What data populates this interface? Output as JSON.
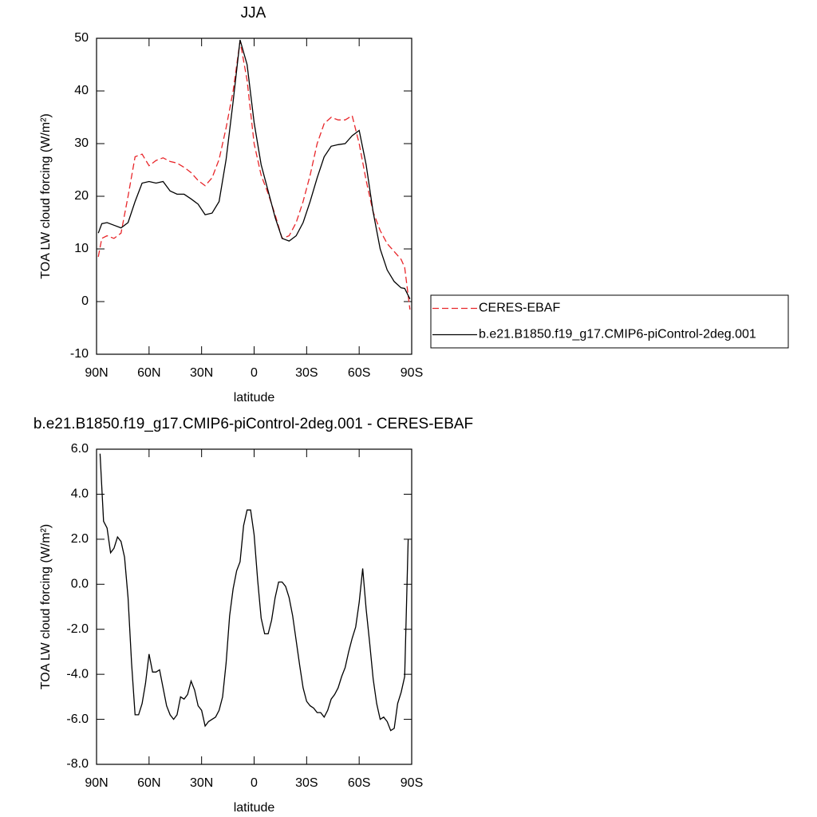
{
  "chart_data": [
    {
      "type": "line",
      "title": "JJA",
      "xlabel": "latitude",
      "ylabel": "TOA LW cloud forcing (W/m²)",
      "xlim": [
        90,
        -90
      ],
      "xticks": [
        {
          "value": 90,
          "label": "90N"
        },
        {
          "value": 60,
          "label": "60N"
        },
        {
          "value": 30,
          "label": "30N"
        },
        0,
        {
          "value": -30,
          "label": "30S"
        },
        {
          "value": -60,
          "label": "60S"
        },
        {
          "value": -90,
          "label": "90S"
        }
      ],
      "ylim": [
        -10,
        50
      ],
      "yticks": [
        -10,
        0,
        10,
        20,
        30,
        40,
        50
      ],
      "legend": "right",
      "x": [
        89,
        87,
        84,
        80,
        76,
        72,
        68,
        64,
        60,
        56,
        52,
        48,
        44,
        40,
        36,
        32,
        28,
        24,
        20,
        16,
        12,
        8,
        4,
        0,
        -4,
        -8,
        -12,
        -16,
        -20,
        -24,
        -28,
        -32,
        -36,
        -40,
        -44,
        -48,
        -52,
        -56,
        -60,
        -64,
        -68,
        -72,
        -76,
        -80,
        -84,
        -86,
        -89
      ],
      "series": [
        {
          "name": "CERES-EBAF",
          "color": "#e8262a",
          "dashed": true,
          "values": [
            8.5,
            12,
            12.5,
            12,
            13,
            20,
            27.5,
            28,
            25.8,
            26.8,
            27.3,
            26.6,
            26.3,
            25.5,
            24.5,
            23,
            22,
            23.5,
            27,
            33,
            40,
            49.5,
            42,
            30,
            24,
            20.5,
            16.5,
            12,
            12.5,
            15,
            19,
            24,
            30,
            33.8,
            35,
            34.5,
            34.5,
            35.3,
            30,
            23,
            17,
            13.5,
            11,
            9.5,
            8,
            6.5,
            -1.5
          ]
        },
        {
          "name": "b.e21.B1850.f19_g17.CMIP6-piControl-2deg.001",
          "color": "#000000",
          "dashed": false,
          "values": [
            13,
            14.8,
            15,
            14.5,
            14,
            15,
            19,
            22.5,
            22.8,
            22.5,
            22.8,
            21,
            20.4,
            20.4,
            19.5,
            18.5,
            16.5,
            16.8,
            19,
            27,
            38,
            49.7,
            45,
            34,
            26,
            21,
            16,
            12,
            11.5,
            12.5,
            15,
            19,
            23.5,
            27.5,
            29.5,
            29.8,
            30,
            31.5,
            32.5,
            26,
            17,
            10,
            6,
            3.8,
            2.6,
            2.5,
            0.5
          ]
        }
      ]
    },
    {
      "type": "line",
      "title": "b.e21.B1850.f19_g17.CMIP6-piControl-2deg.001 - CERES-EBAF",
      "xlabel": "latitude",
      "ylabel": "TOA LW cloud forcing (W/m²)",
      "xlim": [
        90,
        -90
      ],
      "xticks": [
        {
          "value": 90,
          "label": "90N"
        },
        {
          "value": 60,
          "label": "60N"
        },
        {
          "value": 30,
          "label": "30N"
        },
        0,
        {
          "value": -30,
          "label": "30S"
        },
        {
          "value": -60,
          "label": "60S"
        },
        {
          "value": -90,
          "label": "90S"
        }
      ],
      "ylim": [
        -8,
        6
      ],
      "yticks": [
        {
          "value": -8,
          "label": "-8.0"
        },
        {
          "value": -6,
          "label": "-6.0"
        },
        {
          "value": -4,
          "label": "-4.0"
        },
        {
          "value": -2,
          "label": "-2.0"
        },
        {
          "value": 0,
          "label": "0.0"
        },
        {
          "value": 2,
          "label": "2.0"
        },
        {
          "value": 4,
          "label": "4.0"
        },
        {
          "value": 6,
          "label": "6.0"
        }
      ],
      "color": "#000000",
      "x": [
        88,
        86,
        84,
        82,
        80,
        78,
        76,
        74,
        72,
        70,
        68,
        66,
        64,
        62,
        60,
        58,
        56,
        54,
        52,
        50,
        48,
        46,
        44,
        42,
        40,
        38,
        36,
        34,
        32,
        30,
        28,
        26,
        24,
        22,
        20,
        18,
        16,
        14,
        12,
        10,
        8,
        6,
        4,
        2,
        0,
        -2,
        -4,
        -6,
        -8,
        -10,
        -12,
        -14,
        -16,
        -18,
        -20,
        -22,
        -24,
        -26,
        -28,
        -30,
        -32,
        -34,
        -36,
        -38,
        -40,
        -42,
        -44,
        -46,
        -48,
        -50,
        -52,
        -54,
        -56,
        -58,
        -60,
        -62,
        -64,
        -66,
        -68,
        -70,
        -72,
        -74,
        -76,
        -78,
        -80,
        -82,
        -84,
        -86,
        -88
      ],
      "values": [
        5.8,
        2.8,
        2.5,
        1.4,
        1.6,
        2.1,
        1.9,
        1.2,
        -0.6,
        -3.5,
        -5.8,
        -5.8,
        -5.3,
        -4.4,
        -3.1,
        -3.9,
        -3.9,
        -3.8,
        -4.6,
        -5.4,
        -5.8,
        -6.0,
        -5.8,
        -5.0,
        -5.1,
        -4.9,
        -4.3,
        -4.7,
        -5.4,
        -5.6,
        -6.3,
        -6.1,
        -6.0,
        -5.9,
        -5.6,
        -5.0,
        -3.5,
        -1.4,
        -0.2,
        0.6,
        1.0,
        2.6,
        3.3,
        3.3,
        2.2,
        0.2,
        -1.5,
        -2.2,
        -2.2,
        -1.6,
        -0.6,
        0.1,
        0.1,
        -0.1,
        -0.6,
        -1.4,
        -2.5,
        -3.6,
        -4.6,
        -5.2,
        -5.4,
        -5.5,
        -5.7,
        -5.7,
        -5.9,
        -5.6,
        -5.1,
        -4.9,
        -4.6,
        -4.1,
        -3.7,
        -3.0,
        -2.4,
        -1.9,
        -0.8,
        0.7,
        -1.1,
        -2.6,
        -4.2,
        -5.3,
        -6.0,
        -5.9,
        -6.1,
        -6.5,
        -6.4,
        -5.3,
        -4.8,
        -4.1,
        2.0
      ]
    }
  ]
}
